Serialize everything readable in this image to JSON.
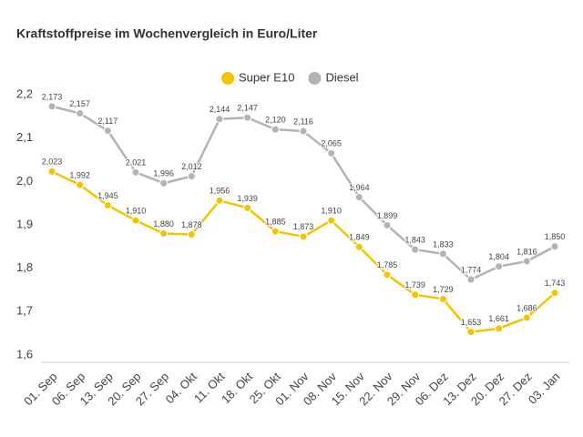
{
  "chart_data": {
    "type": "line",
    "title": "Kraftstoffpreise im Wochenvergleich in Euro/Liter",
    "categories": [
      "01. Sep",
      "06. Sep",
      "13. Sep",
      "20. Sep",
      "27. Sep",
      "04. Okt",
      "11. Okt",
      "18. Okt",
      "25. Okt",
      "01. Nov",
      "08. Nov",
      "15. Nov",
      "22. Nov",
      "29. Nov",
      "06. Dez",
      "13. Dez",
      "20. Dez",
      "27. Dez",
      "03. Jan"
    ],
    "series": [
      {
        "name": "Super E10",
        "color": "#f2c500",
        "values": [
          2.023,
          1.992,
          1.945,
          1.91,
          1.88,
          1.878,
          1.956,
          1.939,
          1.885,
          1.873,
          1.91,
          1.849,
          1.785,
          1.739,
          1.729,
          1.653,
          1.661,
          1.686,
          1.743
        ],
        "value_labels": [
          "2,023",
          "1,992",
          "1,945",
          "1,910",
          "1,880",
          "1,878",
          "1,956",
          "1,939",
          "1,885",
          "1,873",
          "1,910",
          "1,849",
          "1,785",
          "1,739",
          "1,729",
          "1,653",
          "1,661",
          "1,686",
          "1,743"
        ]
      },
      {
        "name": "Diesel",
        "color": "#b3b3b3",
        "values": [
          2.173,
          2.157,
          2.117,
          2.021,
          1.996,
          2.012,
          2.144,
          2.147,
          2.12,
          2.116,
          2.065,
          1.964,
          1.899,
          1.843,
          1.833,
          1.774,
          1.804,
          1.816,
          1.85
        ],
        "value_labels": [
          "2,173",
          "2,157",
          "2,117",
          "2,021",
          "1,996",
          "2,012",
          "2,144",
          "2,147",
          "2,120",
          "2,116",
          "2,065",
          "1,964",
          "1,899",
          "1,843",
          "1,833",
          "1,774",
          "1,804",
          "1,816",
          "1,850"
        ]
      }
    ],
    "ylim": [
      1.583,
      2.22
    ],
    "yticks": [
      {
        "value": 1.6,
        "label": "1,6"
      },
      {
        "value": 1.7,
        "label": "1,7"
      },
      {
        "value": 1.8,
        "label": "1,8"
      },
      {
        "value": 1.9,
        "label": "1,9"
      },
      {
        "value": 2.0,
        "label": "2,0"
      },
      {
        "value": 2.1,
        "label": "2,1"
      },
      {
        "value": 2.2,
        "label": "2,2"
      }
    ],
    "legend": "top",
    "grid": false
  }
}
